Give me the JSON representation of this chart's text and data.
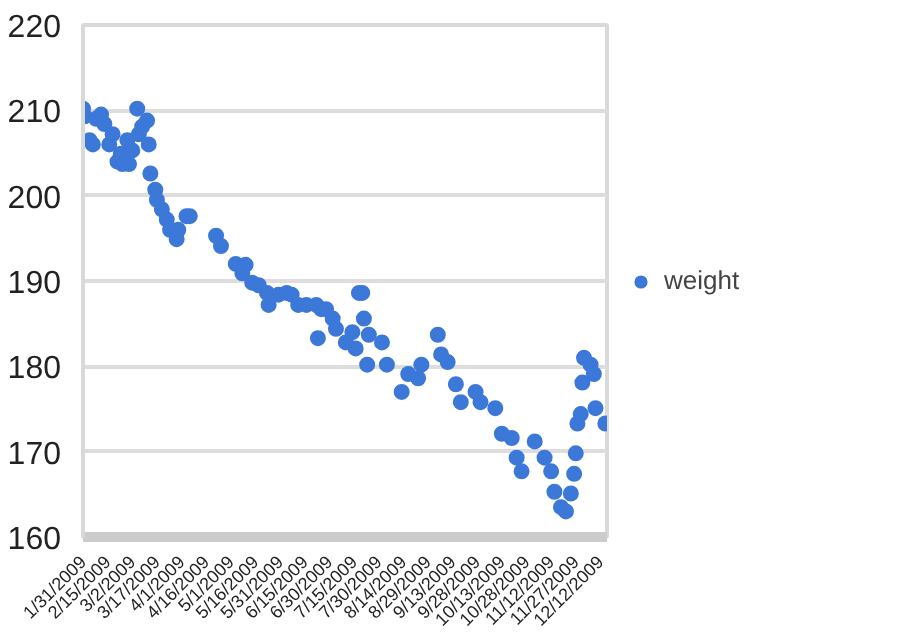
{
  "chart_data": {
    "type": "scatter",
    "xlim": [
      "2009-01-31",
      "2009-12-16"
    ],
    "ylim": [
      160,
      220
    ],
    "yticks": [
      160,
      170,
      180,
      190,
      200,
      210,
      220
    ],
    "xticks": [
      {
        "value": "2009-01-31",
        "label": "1/31/2009"
      },
      {
        "value": "2009-02-15",
        "label": "2/15/2009"
      },
      {
        "value": "2009-03-02",
        "label": "3/2/2009"
      },
      {
        "value": "2009-03-17",
        "label": "3/17/2009"
      },
      {
        "value": "2009-04-01",
        "label": "4/1/2009"
      },
      {
        "value": "2009-04-16",
        "label": "4/16/2009"
      },
      {
        "value": "2009-05-01",
        "label": "5/1/2009"
      },
      {
        "value": "2009-05-16",
        "label": "5/16/2009"
      },
      {
        "value": "2009-05-31",
        "label": "5/31/2009"
      },
      {
        "value": "2009-06-15",
        "label": "6/15/2009"
      },
      {
        "value": "2009-06-30",
        "label": "6/30/2009"
      },
      {
        "value": "2009-07-15",
        "label": "7/15/2009"
      },
      {
        "value": "2009-07-30",
        "label": "7/30/2009"
      },
      {
        "value": "2009-08-14",
        "label": "8/14/2009"
      },
      {
        "value": "2009-08-29",
        "label": "8/29/2009"
      },
      {
        "value": "2009-09-13",
        "label": "9/13/2009"
      },
      {
        "value": "2009-09-28",
        "label": "9/28/2009"
      },
      {
        "value": "2009-10-13",
        "label": "10/13/2009"
      },
      {
        "value": "2009-10-28",
        "label": "10/28/2009"
      },
      {
        "value": "2009-11-12",
        "label": "11/12/2009"
      },
      {
        "value": "2009-11-27",
        "label": "11/27/2009"
      },
      {
        "value": "2009-12-12",
        "label": "12/12/2009"
      }
    ],
    "grid": "y",
    "legend": "right",
    "marker": "circle",
    "series": [
      {
        "name": "weight",
        "color": "#3c78d8",
        "x": [
          "2009-01-31",
          "2009-02-01",
          "2009-02-04",
          "2009-02-06",
          "2009-02-08",
          "2009-02-11",
          "2009-02-13",
          "2009-02-16",
          "2009-02-18",
          "2009-02-21",
          "2009-02-23",
          "2009-02-24",
          "2009-02-27",
          "2009-02-28",
          "2009-03-02",
          "2009-03-05",
          "2009-03-06",
          "2009-03-08",
          "2009-03-11",
          "2009-03-12",
          "2009-03-13",
          "2009-03-16",
          "2009-03-17",
          "2009-03-20",
          "2009-03-23",
          "2009-03-25",
          "2009-03-29",
          "2009-03-30",
          "2009-04-04",
          "2009-04-06",
          "2009-04-22",
          "2009-04-25",
          "2009-05-04",
          "2009-05-08",
          "2009-05-10",
          "2009-05-14",
          "2009-05-18",
          "2009-05-23",
          "2009-05-24",
          "2009-05-30",
          "2009-06-04",
          "2009-06-07",
          "2009-06-11",
          "2009-06-16",
          "2009-06-22",
          "2009-06-23",
          "2009-06-25",
          "2009-06-28",
          "2009-07-02",
          "2009-07-04",
          "2009-07-10",
          "2009-07-14",
          "2009-07-16",
          "2009-07-18",
          "2009-07-20",
          "2009-07-21",
          "2009-07-23",
          "2009-07-24",
          "2009-08-01",
          "2009-08-04",
          "2009-08-13",
          "2009-08-17",
          "2009-08-23",
          "2009-08-25",
          "2009-09-04",
          "2009-09-06",
          "2009-09-10",
          "2009-09-15",
          "2009-09-18",
          "2009-09-27",
          "2009-09-30",
          "2009-10-09",
          "2009-10-13",
          "2009-10-19",
          "2009-10-22",
          "2009-10-25",
          "2009-11-02",
          "2009-11-08",
          "2009-11-12",
          "2009-11-14",
          "2009-11-18",
          "2009-11-21",
          "2009-11-24",
          "2009-11-26",
          "2009-11-27",
          "2009-11-28",
          "2009-11-30",
          "2009-12-01",
          "2009-12-02",
          "2009-12-06",
          "2009-12-08",
          "2009-12-09",
          "2009-12-15"
        ],
        "values": [
          210.2,
          209.3,
          206.5,
          206,
          209,
          209.5,
          208.4,
          206,
          207.2,
          204,
          204.9,
          203.7,
          206.5,
          203.7,
          205.3,
          210.2,
          207.2,
          208.1,
          208.8,
          206,
          202.6,
          200.7,
          199.5,
          198.4,
          197.2,
          196,
          194.9,
          196,
          197.6,
          197.6,
          195.3,
          194.1,
          192,
          190.9,
          191.9,
          189.8,
          189.5,
          188.6,
          187.2,
          188.4,
          188.6,
          188.4,
          187.2,
          187.2,
          187.2,
          183.3,
          186.7,
          186.7,
          185.6,
          184.4,
          182.8,
          184,
          182.1,
          188.6,
          188.6,
          185.6,
          180.2,
          183.7,
          182.8,
          180.2,
          177,
          179.1,
          178.6,
          180.2,
          183.7,
          181.4,
          180.5,
          177.9,
          175.8,
          177,
          175.8,
          175.1,
          172.1,
          171.6,
          169.3,
          167.7,
          171.2,
          169.3,
          167.7,
          165.3,
          163.5,
          163,
          165.1,
          167.4,
          169.8,
          173.3,
          174.4,
          178.1,
          181,
          180.2,
          179.1,
          175.1,
          173.3
        ]
      }
    ]
  }
}
